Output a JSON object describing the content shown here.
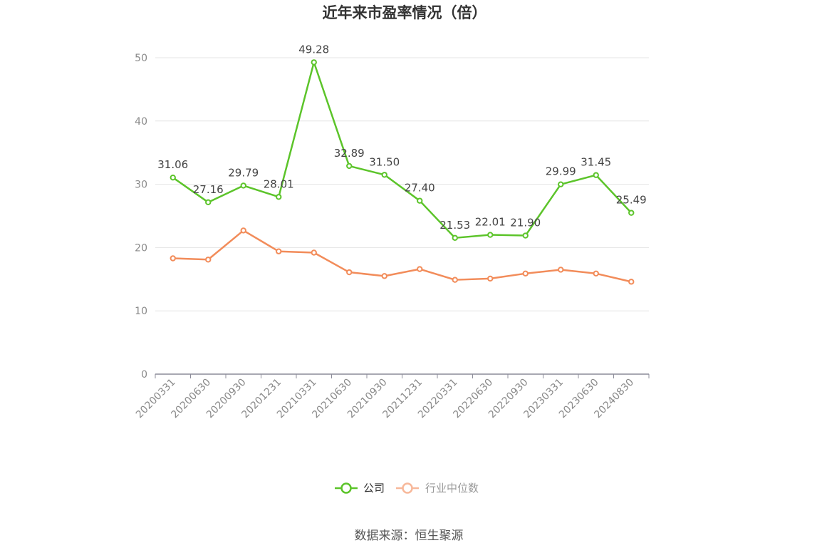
{
  "chart_data": {
    "type": "line",
    "title": "近年来市盈率情况（倍）",
    "categories": [
      "20200331",
      "20200630",
      "20200930",
      "20201231",
      "20210331",
      "20210630",
      "20210930",
      "20211231",
      "20220331",
      "20220630",
      "20220930",
      "20230331",
      "20230630",
      "20240830"
    ],
    "series": [
      {
        "name": "公司",
        "color": "#5cc42a",
        "show_labels": true,
        "values": [
          31.06,
          27.16,
          29.79,
          28.01,
          49.28,
          32.89,
          31.5,
          27.4,
          21.53,
          22.01,
          21.9,
          29.99,
          31.45,
          25.49
        ],
        "labels": [
          "31.06",
          "27.16",
          "29.79",
          "28.01",
          "49.28",
          "32.89",
          "31.50",
          "27.40",
          "21.53",
          "22.01",
          "21.90",
          "29.99",
          "31.45",
          "25.49"
        ]
      },
      {
        "name": "行业中位数",
        "color": "#f28c5a",
        "legend_color": "#f7b89a",
        "show_labels": false,
        "values": [
          18.3,
          18.1,
          22.7,
          19.4,
          19.2,
          16.1,
          15.5,
          16.6,
          14.9,
          15.1,
          15.9,
          16.5,
          15.9,
          14.6
        ]
      }
    ],
    "ylim": [
      0,
      50
    ],
    "yticks": [
      0,
      10,
      20,
      30,
      40,
      50
    ],
    "ytick_labels": [
      "0",
      "10",
      "20",
      "30",
      "40",
      "50"
    ],
    "grid": true,
    "legend_position": "bottom-center",
    "xlabel": "",
    "ylabel": ""
  },
  "source_text": "数据来源：恒生聚源"
}
